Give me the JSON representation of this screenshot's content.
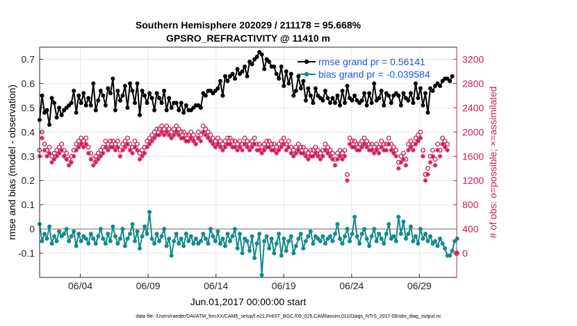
{
  "chart_data": {
    "type": "line",
    "title": [
      "Southern Hemisphere 202029 / 211178 = 95.668%",
      "GPSRO_REFRACTIVITY @ 11410 m"
    ],
    "xlabel": "Jun.01,2017 00:00:00 start",
    "ylabel_left": "rmse and bias (model - observation)",
    "ylabel_right": "# of obs: o=possible; ×=assimilated",
    "footnote": "data file: /Users/raeder/DAI/ATM_forcXX/CAM6_setup/f.e21.FHIST_BGC.f09_025.CAM6assim.011/Diags_NTrS_2017-06/obs_diag_output.nc",
    "x_ticks": [
      "06/04",
      "06/09",
      "06/14",
      "06/19",
      "06/24",
      "06/29"
    ],
    "x_tick_days": [
      4,
      9,
      14,
      19,
      24,
      29
    ],
    "x_range_days": [
      1.0,
      31.75
    ],
    "y_left_range": [
      -0.2,
      0.75
    ],
    "y_left_ticks": [
      "-0.1",
      "0",
      "0.1",
      "0.2",
      "0.3",
      "0.4",
      "0.5",
      "0.6",
      "0.7"
    ],
    "y_right_range": [
      -400,
      3400
    ],
    "y_right_ticks": [
      "0",
      "400",
      "800",
      "1200",
      "1600",
      "2000",
      "2400",
      "2800",
      "3200"
    ],
    "grid": true,
    "legend_position": "top-right",
    "colors": {
      "rmse": "#000000",
      "bias": "#138a8a",
      "obs": "#cc1a55",
      "zero_line": "#b0b0b0"
    },
    "series": [
      {
        "name": "rmse grand pr = 0.56141",
        "axis": "left",
        "values": [
          0.45,
          0.55,
          0.48,
          0.49,
          0.43,
          0.54,
          0.52,
          0.46,
          0.5,
          0.47,
          0.49,
          0.5,
          0.51,
          0.52,
          0.57,
          0.48,
          0.55,
          0.52,
          0.56,
          0.51,
          0.54,
          0.51,
          0.6,
          0.49,
          0.53,
          0.57,
          0.55,
          0.51,
          0.58,
          0.56,
          0.62,
          0.49,
          0.57,
          0.53,
          0.55,
          0.59,
          0.5,
          0.6,
          0.57,
          0.52,
          0.6,
          0.47,
          0.57,
          0.55,
          0.52,
          0.56,
          0.54,
          0.49,
          0.56,
          0.54,
          0.52,
          0.57,
          0.49,
          0.54,
          0.5,
          0.52,
          0.52,
          0.49,
          0.52,
          0.48,
          0.51,
          0.49,
          0.49,
          0.5,
          0.51,
          0.51,
          0.5,
          0.56,
          0.55,
          0.57,
          0.57,
          0.56,
          0.57,
          0.58,
          0.61,
          0.55,
          0.63,
          0.61,
          0.63,
          0.64,
          0.62,
          0.66,
          0.64,
          0.65,
          0.67,
          0.63,
          0.69,
          0.68,
          0.7,
          0.71,
          0.73,
          0.72,
          0.66,
          0.7,
          0.69,
          0.67,
          0.67,
          0.64,
          0.62,
          0.67,
          0.59,
          0.65,
          0.6,
          0.64,
          0.55,
          0.57,
          0.63,
          0.58,
          0.61,
          0.53,
          0.58,
          0.55,
          0.52,
          0.58,
          0.55,
          0.54,
          0.53,
          0.57,
          0.54,
          0.52,
          0.54,
          0.52,
          0.55,
          0.51,
          0.57,
          0.52,
          0.59,
          0.54,
          0.53,
          0.55,
          0.53,
          0.52,
          0.53,
          0.56,
          0.51,
          0.56,
          0.52,
          0.6,
          0.53,
          0.54,
          0.57,
          0.51,
          0.56,
          0.55,
          0.52,
          0.55,
          0.56,
          0.55,
          0.51,
          0.56,
          0.54,
          0.53,
          0.56,
          0.52,
          0.6,
          0.54,
          0.58,
          0.51,
          0.56,
          0.48,
          0.58,
          0.57,
          0.59,
          0.6,
          0.59,
          0.61,
          0.62,
          0.62,
          0.61,
          0.63
        ]
      },
      {
        "name": "bias grand pr = -0.039584",
        "axis": "left",
        "values": [
          0.02,
          -0.05,
          -0.02,
          -0.04,
          0.01,
          -0.06,
          -0.03,
          -0.05,
          -0.01,
          -0.03,
          -0.02,
          0.0,
          -0.05,
          -0.03,
          -0.01,
          -0.07,
          -0.02,
          -0.05,
          -0.03,
          -0.04,
          -0.06,
          -0.02,
          -0.04,
          -0.06,
          -0.03,
          0.0,
          -0.04,
          -0.06,
          -0.02,
          -0.05,
          0.01,
          -0.03,
          -0.06,
          -0.04,
          0.0,
          -0.07,
          -0.04,
          -0.02,
          0.02,
          -0.05,
          -0.01,
          -0.08,
          -0.03,
          0.01,
          -0.02,
          0.07,
          -0.04,
          -0.06,
          -0.02,
          -0.05,
          -0.03,
          0.0,
          -0.07,
          -0.04,
          -0.11,
          -0.05,
          -0.02,
          -0.06,
          -0.04,
          -0.07,
          -0.02,
          -0.05,
          -0.03,
          -0.06,
          -0.04,
          -0.06,
          -0.05,
          -0.02,
          -0.04,
          -0.06,
          0.0,
          -0.03,
          -0.05,
          -0.01,
          -0.06,
          -0.04,
          -0.07,
          -0.02,
          -0.05,
          -0.03,
          0.0,
          -0.08,
          -0.02,
          -0.1,
          -0.04,
          -0.05,
          -0.09,
          -0.03,
          -0.12,
          -0.06,
          -0.02,
          -0.19,
          -0.05,
          -0.03,
          -0.08,
          -0.04,
          -0.1,
          -0.06,
          -0.02,
          -0.11,
          -0.04,
          -0.09,
          -0.05,
          -0.03,
          -0.1,
          -0.07,
          -0.04,
          -0.02,
          -0.08,
          -0.05,
          -0.03,
          -0.01,
          -0.06,
          -0.03,
          -0.04,
          -0.05,
          -0.03,
          -0.06,
          -0.04,
          -0.03,
          -0.05,
          -0.02,
          0.02,
          -0.04,
          -0.06,
          -0.03,
          0.0,
          -0.05,
          -0.02,
          0.05,
          -0.03,
          -0.06,
          -0.02,
          0.0,
          -0.04,
          -0.07,
          -0.03,
          0.0,
          -0.05,
          -0.02,
          -0.04,
          -0.06,
          -0.02,
          0.02,
          -0.04,
          -0.03,
          -0.05,
          0.05,
          -0.02,
          0.03,
          -0.04,
          -0.02,
          0.01,
          -0.05,
          -0.03,
          -0.06,
          0.0,
          -0.04,
          -0.02,
          -0.05,
          -0.03,
          -0.06,
          -0.05,
          -0.07,
          -0.04,
          -0.06,
          -0.08,
          -0.11,
          -0.11,
          -0.09,
          -0.05,
          -0.04
        ]
      },
      {
        "name": "possible",
        "axis": "right",
        "marker": "circle",
        "values": [
          1700,
          2000,
          1800,
          1700,
          1750,
          1600,
          1650,
          1700,
          1750,
          1800,
          1700,
          1650,
          1550,
          1600,
          1700,
          1800,
          1850,
          1900,
          1850,
          1900,
          1750,
          1650,
          1550,
          1600,
          1650,
          1700,
          1750,
          1850,
          1800,
          1850,
          1850,
          1800,
          1850,
          1700,
          1800,
          1850,
          1900,
          1800,
          1750,
          1850,
          1800,
          1650,
          1700,
          1750,
          1850,
          1900,
          1950,
          2000,
          2050,
          2050,
          2100,
          2050,
          2100,
          2050,
          2000,
          2050,
          2100,
          2050,
          2000,
          2000,
          1950,
          1950,
          2000,
          1950,
          1900,
          2000,
          1950,
          2100,
          2050,
          2000,
          1950,
          1900,
          1850,
          1900,
          1850,
          1800,
          1850,
          1900,
          1900,
          1850,
          1850,
          1800,
          1850,
          1800,
          1900,
          1850,
          1800,
          1850,
          1900,
          1800,
          1800,
          1750,
          1800,
          1850,
          1850,
          1800,
          1800,
          1750,
          1800,
          1850,
          1900,
          1800,
          1850,
          1750,
          1700,
          1750,
          1800,
          1750,
          1750,
          1700,
          1650,
          1700,
          1700,
          1750,
          1700,
          1650,
          1700,
          1800,
          1750,
          1700,
          1650,
          1550,
          1650,
          1700,
          1650,
          1700,
          1300,
          1900,
          1850,
          1850,
          1800,
          1800,
          1850,
          1900,
          1850,
          1800,
          1800,
          1750,
          1800,
          1750,
          1850,
          1800,
          1800,
          1900,
          1800,
          1750,
          1700,
          1500,
          1600,
          1650,
          1550,
          1800,
          1850,
          1800,
          1900,
          1950,
          2000,
          1700,
          1300,
          1400,
          1600,
          1700,
          1550,
          1800,
          1700,
          1900,
          1850,
          1800
        ]
      },
      {
        "name": "assimilated",
        "axis": "right",
        "marker": "asterisk",
        "values": [
          1600,
          1900,
          1700,
          1600,
          1650,
          1500,
          1550,
          1600,
          1650,
          1700,
          1600,
          1550,
          1450,
          1500,
          1600,
          1700,
          1750,
          1800,
          1750,
          1800,
          1650,
          1550,
          1450,
          1500,
          1550,
          1600,
          1650,
          1750,
          1700,
          1750,
          1750,
          1700,
          1750,
          1600,
          1700,
          1750,
          1800,
          1700,
          1650,
          1750,
          1700,
          1550,
          1600,
          1650,
          1750,
          1800,
          1850,
          1900,
          1950,
          1950,
          2000,
          1950,
          2000,
          1950,
          1900,
          1950,
          2000,
          1950,
          1900,
          1900,
          1850,
          1850,
          1900,
          1850,
          1800,
          1900,
          1850,
          2000,
          1950,
          1900,
          1850,
          1800,
          1750,
          1800,
          1750,
          1700,
          1750,
          1800,
          1800,
          1750,
          1750,
          1700,
          1750,
          1700,
          1800,
          1750,
          1700,
          1750,
          1800,
          1700,
          1700,
          1650,
          1700,
          1750,
          1750,
          1700,
          1700,
          1650,
          1700,
          1750,
          1800,
          1700,
          1750,
          1650,
          1600,
          1650,
          1700,
          1650,
          1650,
          1600,
          1550,
          1600,
          1600,
          1650,
          1600,
          1550,
          1600,
          1700,
          1650,
          1600,
          1550,
          1450,
          1550,
          1600,
          1550,
          1600,
          1200,
          1800,
          1750,
          1750,
          1700,
          1700,
          1750,
          1800,
          1750,
          1700,
          1700,
          1650,
          1700,
          1650,
          1750,
          1700,
          1700,
          1800,
          1700,
          1650,
          1600,
          1400,
          1500,
          1550,
          1450,
          1700,
          1750,
          1700,
          1800,
          1850,
          1900,
          1600,
          1200,
          1300,
          1500,
          1600,
          1450,
          1700,
          1600,
          1800,
          1750,
          1700
        ]
      }
    ],
    "extra_point": {
      "x_day": 31.75,
      "value": 0,
      "axis": "right",
      "marker": "circle-asterisk"
    }
  }
}
